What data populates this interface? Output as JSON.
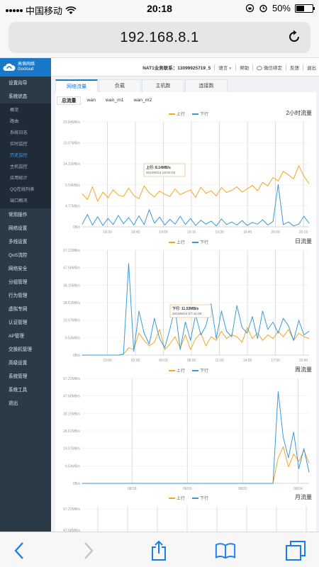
{
  "status_bar": {
    "carrier": "中国移动",
    "time": "20:18",
    "battery": "50%",
    "battery_level": 0.5
  },
  "browser": {
    "url": "192.168.8.1"
  },
  "header": {
    "logo_line1": "高恪网络",
    "logo_line2": "Gocloud",
    "nat_label": "NAT1业务联系：13099925719_5",
    "links": [
      "语言",
      "帮助",
      "微信绑定",
      "反馈",
      "退出"
    ]
  },
  "sidebar": {
    "items_top": [
      "设置向导",
      "系统状态"
    ],
    "sub_items": [
      "概览",
      "路由",
      "系统日志",
      "实时监控",
      "历史监控",
      "主机监控",
      "应用统计",
      "QQ在线列表",
      "端口概况"
    ],
    "active_sub": "历史监控",
    "items_bottom": [
      "常用操作",
      "网络设置",
      "多线设置",
      "QoS流控",
      "网络安全",
      "分组管理",
      "行为管理",
      "虚拟专网",
      "认证管理",
      "AP管理",
      "交换机管理",
      "高级设置",
      "系统管理",
      "系统工具",
      "退出"
    ]
  },
  "tabs": [
    "网络流量",
    "负载",
    "主机数",
    "连接数"
  ],
  "subtabs": [
    "总流量",
    "wan",
    "wan_m1",
    "wan_m2"
  ],
  "legend": {
    "up": "上行",
    "down": "下行"
  },
  "colors": {
    "up": "#f5a623",
    "down": "#3a9ad9",
    "accent": "#1a78c8"
  },
  "chart_data": [
    {
      "type": "line",
      "title": "2小时流量",
      "y_ticks": [
        "23.84MB/s",
        "19.07MB/s",
        "14.31MB/s",
        "9.54MB/s",
        "4.77MB/s",
        "0B/s"
      ],
      "ylim": [
        0,
        23.84
      ],
      "x_ticks": [
        "18:30",
        "18:45",
        "19:00",
        "19:15",
        "19:30",
        "19:45",
        "20:00",
        "20:15"
      ],
      "tooltip": {
        "line1": "上行: 8.14MB/s",
        "line2": "2019/8/24 19:02:02"
      },
      "series": [
        {
          "name": "上行",
          "values": [
            7.5,
            6.2,
            9.1,
            5.8,
            7.9,
            6.6,
            8.4,
            7.2,
            6.9,
            8.8,
            7.1,
            6.4,
            9.3,
            7.7,
            6.8,
            8.1,
            7.4,
            6.9,
            8.6,
            7.3,
            7.9,
            8.4,
            6.7,
            9.0,
            7.6,
            8.2,
            7.0,
            8.9,
            7.8,
            8.3,
            9.1,
            7.9,
            8.6,
            9.4,
            8.2,
            10.1,
            9.3,
            11.2,
            10.4,
            12.6,
            11.8,
            10.9,
            13.9,
            11.5,
            9.8
          ]
        },
        {
          "name": "下行",
          "values": [
            0.6,
            2.8,
            0.4,
            2.3,
            0.3,
            1.9,
            0.5,
            2.6,
            0.7,
            2.1,
            0.4,
            2.5,
            0.5,
            3.9,
            0.8,
            2.2,
            0.4,
            1.7,
            0.6,
            2.4,
            0.5,
            1.9,
            0.3,
            1.5,
            0.6,
            1.3,
            0.2,
            1.8,
            0.5,
            1.1,
            0.4,
            1.4,
            0.3,
            1.0,
            0.6,
            1.6,
            0.4,
            1.2,
            9.6,
            0.5,
            1.1,
            0.2,
            0.6,
            2.4,
            0.8
          ]
        }
      ]
    },
    {
      "type": "line",
      "title": "日流量",
      "y_ticks": [
        "57.22MB/s",
        "47.68MB/s",
        "38.15MB/s",
        "28.61MB/s",
        "19.07MB/s",
        "9.54MB/s",
        "0B/s"
      ],
      "ylim": [
        0,
        57.22
      ],
      "x_ticks": [
        "23:00",
        "02:00",
        "05:00",
        "08:00",
        "11:00",
        "14:00",
        "17:00",
        "20:00"
      ],
      "tooltip": {
        "line1": "下行: 11.53MB/s",
        "line2": "2019/8/24 07:41:00"
      },
      "series": [
        {
          "name": "上行",
          "values": [
            0,
            0,
            0,
            0,
            0,
            0,
            0,
            0,
            0.5,
            4,
            3,
            12,
            8,
            5,
            7,
            14,
            3,
            6,
            10,
            4,
            11,
            3,
            9,
            12,
            5,
            10,
            8,
            13,
            9,
            11,
            10,
            7,
            15,
            9,
            12,
            8,
            11,
            9,
            13,
            10,
            14,
            8,
            12,
            10,
            9
          ]
        },
        {
          "name": "下行",
          "values": [
            0,
            0,
            0,
            0,
            0,
            0,
            0,
            0,
            0.5,
            50,
            2,
            24,
            12,
            6,
            20,
            9,
            4,
            14,
            26,
            3,
            18,
            8,
            22,
            11,
            16,
            28,
            9,
            24,
            13,
            10,
            27,
            15,
            12,
            21,
            9,
            24,
            14,
            18,
            12,
            20,
            16,
            8,
            19,
            11,
            13
          ]
        }
      ]
    },
    {
      "type": "line",
      "title": "周流量",
      "y_ticks": [
        "57.22MB/s",
        "47.68MB/s",
        "38.15MB/s",
        "28.61MB/s",
        "19.07MB/s",
        "9.54MB/s",
        "0B/s"
      ],
      "ylim": [
        0,
        57.22
      ],
      "x_ticks": [
        "08/18",
        "08/20",
        "08/22",
        "08/24"
      ],
      "series": [
        {
          "name": "上行",
          "values": [
            0,
            0,
            0,
            0,
            0,
            0,
            0,
            0,
            0,
            0,
            0,
            0,
            0,
            0,
            0,
            0,
            0,
            0,
            0,
            0,
            0,
            0,
            0,
            0,
            0,
            0,
            0,
            0,
            0,
            0,
            0,
            0,
            0,
            0,
            0,
            0,
            0,
            0,
            14,
            20,
            9,
            16,
            12,
            18,
            11
          ]
        },
        {
          "name": "下行",
          "values": [
            0,
            0,
            0,
            0,
            0,
            0,
            0,
            0,
            0,
            0,
            0,
            0,
            0,
            0,
            0,
            0,
            0,
            0,
            0,
            0,
            0,
            0,
            0,
            0,
            0,
            0,
            0,
            0,
            0,
            0,
            0,
            0,
            0,
            0,
            0,
            0,
            0,
            0,
            50,
            25,
            14,
            28,
            8,
            19,
            6
          ]
        }
      ]
    },
    {
      "type": "line",
      "title": "月流量",
      "y_ticks": [
        "57.22MB/s",
        "47.68MB/s"
      ],
      "ylim": [
        0,
        57.22
      ],
      "x_ticks": [],
      "series": []
    }
  ]
}
